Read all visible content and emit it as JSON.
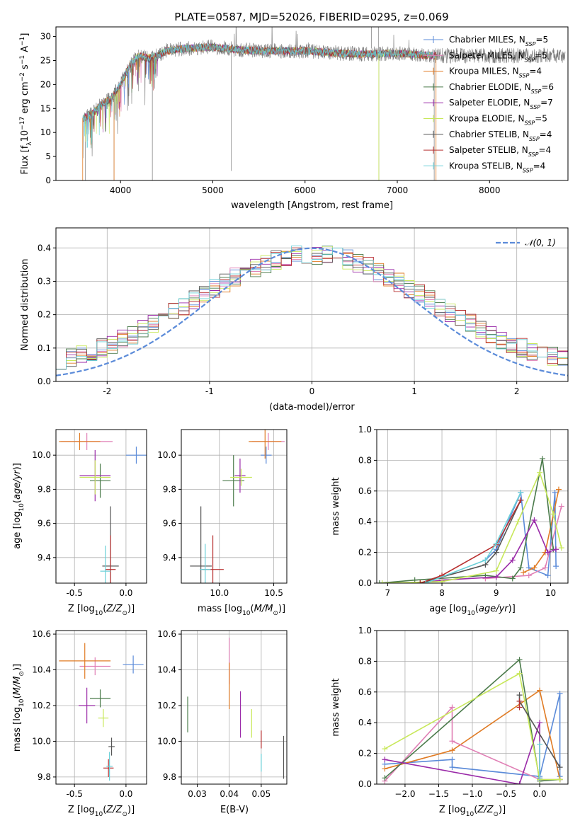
{
  "title": "PLATE=0587, MJD=52026, FIBERID=0295, z=0.069",
  "chart_data": [
    {
      "type": "line",
      "name": "spectrum",
      "xlabel": "wavelength [Angstrom, rest frame]",
      "ylabel": "Flux [fλ10⁻¹⁷ erg cm⁻² s⁻¹ A⁻¹]",
      "xlim": [
        3300,
        8850
      ],
      "ylim": [
        0,
        32
      ],
      "xticks": [
        4000,
        5000,
        6000,
        7000,
        8000
      ],
      "yticks": [
        0,
        5,
        10,
        15,
        20,
        25,
        30
      ],
      "grid": false,
      "legend": "top-right",
      "continuum": {
        "x": [
          3600,
          3700,
          3800,
          3900,
          4000,
          4100,
          4200,
          4300,
          4400,
          4500,
          4700,
          5000,
          5300,
          5600,
          6000,
          6300,
          6600,
          7000,
          7400
        ],
        "y": [
          13,
          14,
          16,
          17,
          20,
          24,
          26,
          25.5,
          26,
          27,
          27.5,
          27.8,
          27.2,
          27,
          27,
          26.6,
          26.3,
          26.5,
          26
        ]
      },
      "observed_range": [
        3590,
        8820
      ],
      "model_range": [
        3590,
        7420
      ],
      "spikes": [
        3620,
        3930,
        4345,
        5200,
        6800,
        7400
      ]
    },
    {
      "type": "line",
      "name": "residual-distribution",
      "xlabel": "(data-model)/error",
      "ylabel": "Normed distribution",
      "xlim": [
        -2.5,
        2.5
      ],
      "ylim": [
        0,
        0.46
      ],
      "xticks": [
        -2,
        -1,
        0,
        1,
        2
      ],
      "yticks": [
        0.0,
        0.1,
        0.2,
        0.3,
        0.4
      ],
      "grid": true,
      "legend": "top-right",
      "gaussian_label": "𝒩(0, 1)"
    },
    {
      "type": "scatter",
      "name": "age-vs-Z",
      "xlabel": "Z [log10(Z/Z⊙)]",
      "ylabel": "age  [log10(age/yr)]",
      "xlim": [
        -0.68,
        0.2
      ],
      "ylim": [
        9.25,
        10.15
      ],
      "xticks": [
        -0.5,
        0.0
      ],
      "yticks": [
        9.4,
        9.6,
        9.8,
        10.0
      ],
      "grid": true,
      "points": [
        {
          "x": 0.1,
          "y": 10.0,
          "xerr": 0.1,
          "yerr": 0.05
        },
        {
          "x": -0.38,
          "y": 10.08,
          "xerr": 0.25,
          "yerr": 0.05
        },
        {
          "x": -0.45,
          "y": 10.08,
          "xerr": 0.2,
          "yerr": 0.05
        },
        {
          "x": -0.25,
          "y": 9.85,
          "xerr": 0.1,
          "yerr": 0.1
        },
        {
          "x": -0.3,
          "y": 9.88,
          "xerr": 0.15,
          "yerr": 0.15
        },
        {
          "x": -0.3,
          "y": 9.87,
          "xerr": 0.15,
          "yerr": 0.1
        },
        {
          "x": -0.15,
          "y": 9.35,
          "xerr": 0.08,
          "yerr": 0.35
        },
        {
          "x": -0.15,
          "y": 9.33,
          "xerr": 0.05,
          "yerr": 0.2
        },
        {
          "x": -0.2,
          "y": 9.32,
          "xerr": 0.05,
          "yerr": 0.15
        }
      ]
    },
    {
      "type": "scatter",
      "name": "age-vs-mass",
      "xlabel": "mass [log10(M/M⊙)]",
      "ylabel": "",
      "xlim": [
        9.65,
        10.62
      ],
      "ylim": [
        9.25,
        10.15
      ],
      "xticks": [
        10.0,
        10.5
      ],
      "yticks": [
        9.4,
        9.6,
        9.8,
        10.0
      ],
      "grid": true,
      "points": [
        {
          "x": 10.43,
          "y": 10.0,
          "xerr": 0.05,
          "yerr": 0.05
        },
        {
          "x": 10.45,
          "y": 10.08,
          "xerr": 0.15,
          "yerr": 0.05
        },
        {
          "x": 10.42,
          "y": 10.08,
          "xerr": 0.15,
          "yerr": 0.1
        },
        {
          "x": 10.13,
          "y": 9.85,
          "xerr": 0.1,
          "yerr": 0.15
        },
        {
          "x": 10.19,
          "y": 9.88,
          "xerr": 0.05,
          "yerr": 0.1
        },
        {
          "x": 10.2,
          "y": 9.87,
          "xerr": 0.1,
          "yerr": 0.05
        },
        {
          "x": 9.83,
          "y": 9.35,
          "xerr": 0.1,
          "yerr": 0.35
        },
        {
          "x": 9.94,
          "y": 9.33,
          "xerr": 0.1,
          "yerr": 0.2
        },
        {
          "x": 9.87,
          "y": 9.33,
          "xerr": 0.05,
          "yerr": 0.15
        }
      ]
    },
    {
      "type": "line",
      "name": "mass-weight-vs-age",
      "xlabel": "age  [log10(age/yr)]",
      "ylabel": "mass weight",
      "xlim": [
        6.8,
        10.32
      ],
      "ylim": [
        0,
        1
      ],
      "xticks": [
        7,
        8,
        9,
        10
      ],
      "yticks": [
        0.0,
        0.2,
        0.4,
        0.6,
        0.8,
        1.0
      ],
      "grid": true,
      "series": [
        {
          "color": "#5b8bd9",
          "x": [
            8.8,
            9.0,
            9.45,
            9.6,
            9.95,
            10.08,
            10.1
          ],
          "y": [
            0.15,
            0.22,
            0.59,
            0.1,
            0.05,
            0.59,
            0.11
          ]
        },
        {
          "color": "#e07b24",
          "x": [
            9.5,
            9.7,
            9.9,
            10.15
          ],
          "y": [
            0.07,
            0.1,
            0.2,
            0.61
          ]
        },
        {
          "color": "#e07fb5",
          "x": [
            8.8,
            9.6,
            9.9,
            10.2
          ],
          "y": [
            0.03,
            0.05,
            0.1,
            0.5
          ]
        },
        {
          "color": "#4a7a4a",
          "x": [
            6.85,
            7.5,
            8.8,
            9.3,
            9.45,
            9.85,
            10.05
          ],
          "y": [
            0.0,
            0.02,
            0.05,
            0.03,
            0.1,
            0.81,
            0.22
          ]
        },
        {
          "color": "#9a2aa8",
          "x": [
            7.6,
            8.0,
            9.0,
            9.3,
            9.7,
            9.95,
            10.1
          ],
          "y": [
            0.0,
            0.02,
            0.04,
            0.15,
            0.41,
            0.2,
            0.22
          ]
        },
        {
          "color": "#c8e85a",
          "x": [
            6.9,
            8.0,
            9.0,
            9.4,
            9.8,
            10.05,
            10.2
          ],
          "y": [
            0.0,
            0.01,
            0.08,
            0.4,
            0.72,
            0.45,
            0.23
          ]
        },
        {
          "color": "#555555",
          "x": [
            7.6,
            8.8,
            9.0,
            9.45
          ],
          "y": [
            0.0,
            0.12,
            0.2,
            0.54
          ]
        },
        {
          "color": "#b83030",
          "x": [
            7.6,
            8.0,
            9.0,
            9.45
          ],
          "y": [
            0.0,
            0.05,
            0.25,
            0.54
          ]
        },
        {
          "color": "#6ad0d8",
          "x": [
            7.7,
            8.8,
            9.0,
            9.45
          ],
          "y": [
            0.0,
            0.15,
            0.26,
            0.59
          ]
        }
      ]
    },
    {
      "type": "scatter",
      "name": "mass-vs-Z",
      "xlabel": "Z [log10(Z/Z⊙)]",
      "ylabel": "mass [log10(M/M⊙)]",
      "xlim": [
        -0.68,
        0.2
      ],
      "ylim": [
        9.76,
        10.62
      ],
      "xticks": [
        -0.5,
        0.0
      ],
      "yticks": [
        9.8,
        10.0,
        10.2,
        10.4,
        10.6
      ],
      "grid": true,
      "points": [
        {
          "x": 0.07,
          "y": 10.43,
          "xerr": 0.1,
          "yerr": 0.05
        },
        {
          "x": -0.3,
          "y": 10.42,
          "xerr": 0.15,
          "yerr": 0.05
        },
        {
          "x": -0.4,
          "y": 10.45,
          "xerr": 0.25,
          "yerr": 0.1
        },
        {
          "x": -0.25,
          "y": 10.24,
          "xerr": 0.1,
          "yerr": 0.05
        },
        {
          "x": -0.38,
          "y": 10.2,
          "xerr": 0.08,
          "yerr": 0.1
        },
        {
          "x": -0.22,
          "y": 10.13,
          "xerr": 0.05,
          "yerr": 0.05
        },
        {
          "x": -0.14,
          "y": 9.97,
          "xerr": 0.03,
          "yerr": 0.05
        },
        {
          "x": -0.17,
          "y": 9.85,
          "xerr": 0.05,
          "yerr": 0.05
        },
        {
          "x": -0.16,
          "y": 9.86,
          "xerr": 0.03,
          "yerr": 0.08
        }
      ]
    },
    {
      "type": "scatter",
      "name": "mass-vs-EBV",
      "xlabel": "E(B-V)",
      "ylabel": "",
      "xlim": [
        0.025,
        0.058
      ],
      "ylim": [
        9.76,
        10.62
      ],
      "xticks": [
        0.03,
        0.04,
        0.05
      ],
      "yticks": [
        9.8,
        10.0,
        10.2,
        10.4,
        10.6
      ],
      "grid": true,
      "points": [
        {
          "x": 0.027,
          "y": 10.15,
          "yerr": 0.1,
          "color": "#4a7a4a"
        },
        {
          "x": 0.04,
          "y": 10.45,
          "yerr": 0.13,
          "color": "#e07fb5"
        },
        {
          "x": 0.04,
          "y": 10.31,
          "yerr": 0.13,
          "color": "#e07b24"
        },
        {
          "x": 0.0435,
          "y": 10.15,
          "yerr": 0.13,
          "color": "#9a2aa8"
        },
        {
          "x": 0.047,
          "y": 10.1,
          "yerr": 0.08,
          "color": "#c8e85a"
        },
        {
          "x": 0.05,
          "y": 10.01,
          "yerr": 0.05,
          "color": "#b83030"
        },
        {
          "x": 0.05,
          "y": 9.88,
          "yerr": 0.05,
          "color": "#6ad0d8"
        },
        {
          "x": 0.057,
          "y": 9.91,
          "yerr": 0.12,
          "color": "#555555"
        }
      ]
    },
    {
      "type": "line",
      "name": "mass-weight-vs-Z",
      "xlabel": "Z [log10(Z/Z⊙)]",
      "ylabel": "mass weight",
      "xlim": [
        -2.42,
        0.42
      ],
      "ylim": [
        0,
        1
      ],
      "xticks": [
        -2.0,
        -1.5,
        -1.0,
        -0.5,
        0.0
      ],
      "yticks": [
        0.0,
        0.2,
        0.4,
        0.6,
        0.8,
        1.0
      ],
      "grid": true,
      "series": [
        {
          "color": "#5b8bd9",
          "x": [
            -2.3,
            -1.3,
            -1.3,
            0.0,
            0.3,
            0.3
          ],
          "y": [
            0.13,
            0.16,
            0.11,
            0.05,
            0.59,
            0.05
          ]
        },
        {
          "color": "#e07b24",
          "x": [
            -2.3,
            -1.3,
            0.0,
            0.3
          ],
          "y": [
            0.1,
            0.22,
            0.61,
            0.03
          ]
        },
        {
          "color": "#e07fb5",
          "x": [
            -2.3,
            -1.3,
            -1.3,
            0.0,
            0.3
          ],
          "y": [
            0.02,
            0.5,
            0.28,
            0.03,
            0.03
          ]
        },
        {
          "color": "#4a7a4a",
          "x": [
            -2.3,
            -0.3,
            0.0,
            0.3
          ],
          "y": [
            0.04,
            0.81,
            0.02,
            0.03
          ]
        },
        {
          "color": "#9a2aa8",
          "x": [
            -2.3,
            -0.3,
            0.0,
            0.0
          ],
          "y": [
            0.16,
            0.0,
            0.4,
            0.04
          ]
        },
        {
          "color": "#c8e85a",
          "x": [
            -2.3,
            -0.3,
            0.0,
            0.3
          ],
          "y": [
            0.23,
            0.72,
            0.03,
            0.03
          ]
        },
        {
          "color": "#555555",
          "x": [
            -0.3,
            -0.3,
            0.3
          ],
          "y": [
            0.58,
            0.54,
            0.11
          ]
        },
        {
          "color": "#b83030",
          "x": [
            -0.3,
            -0.3
          ],
          "y": [
            0.54,
            0.5
          ]
        },
        {
          "color": "#6ad0d8",
          "x": [
            0.0,
            0.0
          ],
          "y": [
            0.26,
            0.04
          ]
        }
      ]
    }
  ],
  "legend": [
    {
      "label": "Chabrier MILES, N",
      "sub": "SSP",
      "tail": "=5",
      "color": "#5b8bd9"
    },
    {
      "label": "Salpeter MILES, N",
      "sub": "SSP",
      "tail": "=5",
      "color": "#e07fb5"
    },
    {
      "label": "Kroupa MILES, N",
      "sub": "SSP",
      "tail": "=4",
      "color": "#e07b24"
    },
    {
      "label": "Chabrier ELODIE, N",
      "sub": "SSP",
      "tail": "=6",
      "color": "#4a7a4a"
    },
    {
      "label": "Salpeter ELODIE, N",
      "sub": "SSP",
      "tail": "=7",
      "color": "#9a2aa8"
    },
    {
      "label": "Kroupa ELODIE, N",
      "sub": "SSP",
      "tail": "=5",
      "color": "#c8e85a"
    },
    {
      "label": "Chabrier STELIB, N",
      "sub": "SSP",
      "tail": "=4",
      "color": "#555555"
    },
    {
      "label": "Salpeter STELIB, N",
      "sub": "SSP",
      "tail": "=4",
      "color": "#b83030"
    },
    {
      "label": "Kroupa STELIB, N",
      "sub": "SSP",
      "tail": "=4",
      "color": "#6ad0d8"
    }
  ],
  "colors": {
    "observed": "#7a7a7a",
    "gaussian": "#5b8bd9"
  }
}
